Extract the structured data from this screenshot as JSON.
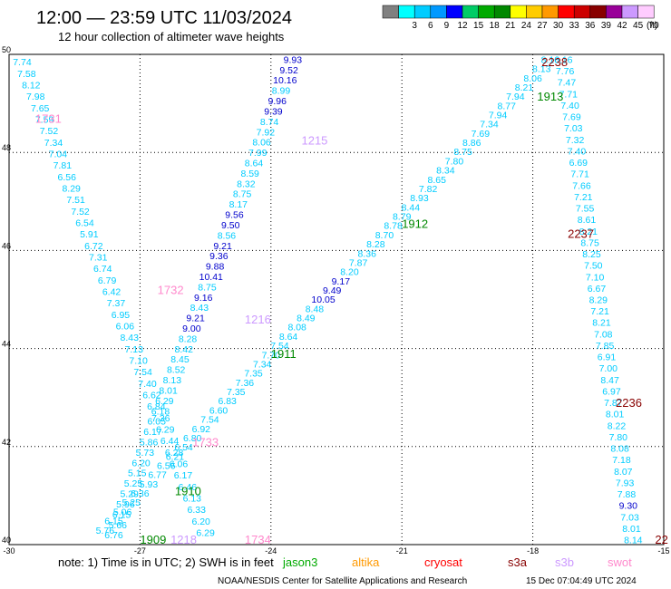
{
  "header": {
    "title": "12:00 — 23:59 UTC 11/03/2024",
    "subtitle": "12 hour collection of altimeter wave heights"
  },
  "scale": {
    "unit": "(ft)",
    "bins": [
      {
        "label": "",
        "color": "#808080"
      },
      {
        "label": "3",
        "color": "#00ffff"
      },
      {
        "label": "6",
        "color": "#00ccff"
      },
      {
        "label": "9",
        "color": "#0099ff"
      },
      {
        "label": "12",
        "color": "#0000ff"
      },
      {
        "label": "15",
        "color": "#00cc66"
      },
      {
        "label": "18",
        "color": "#00aa00"
      },
      {
        "label": "21",
        "color": "#008800"
      },
      {
        "label": "24",
        "color": "#ffff00"
      },
      {
        "label": "27",
        "color": "#ffcc00"
      },
      {
        "label": "30",
        "color": "#ff9900"
      },
      {
        "label": "33",
        "color": "#ff0000"
      },
      {
        "label": "36",
        "color": "#cc0000"
      },
      {
        "label": "39",
        "color": "#880000"
      },
      {
        "label": "42",
        "color": "#990099"
      },
      {
        "label": "45",
        "color": "#cc99ff"
      },
      {
        "label": "70",
        "color": "#ffccff"
      }
    ]
  },
  "axes": {
    "lon_ticks": [
      "-30",
      "-27",
      "-24",
      "-21",
      "-18",
      "-15"
    ],
    "lat_ticks": [
      "50",
      "48",
      "46",
      "44",
      "42",
      "40"
    ],
    "lon_range": [
      -30,
      -15
    ],
    "lat_range": [
      40,
      50
    ]
  },
  "satellites": [
    {
      "name": "jason3",
      "color": "#00aa00"
    },
    {
      "name": "altika",
      "color": "#ff9900"
    },
    {
      "name": "cryosat",
      "color": "#ff0000"
    },
    {
      "name": "s3a",
      "color": "#880000"
    },
    {
      "name": "s3b",
      "color": "#cc99ff"
    },
    {
      "name": "swot",
      "color": "#ff88cc"
    }
  ],
  "footer": {
    "note": "note: 1) Time is in UTC; 2) SWH is in feet",
    "credit": "NOAA/NESDIS Center for Satellite Applications and Research",
    "timestamp": "15 Dec 07:04:49 UTC 2024"
  },
  "tracks": [
    {
      "name": "track-swot-1731",
      "color": "#00ccff",
      "time": "1731",
      "time_color": "#ff88cc",
      "time_lon": -29.4,
      "time_lat": 48.7,
      "start": [
        -29.7,
        49.85
      ],
      "end": [
        -25.5,
        40.25
      ],
      "values": [
        "7.74",
        "7.58",
        "8.12",
        "7.98",
        "7.65",
        "7.59",
        "7.52",
        "7.34",
        "7.04",
        "7.81",
        "6.56",
        "8.29",
        "7.51",
        "7.52",
        "6.54",
        "5.91",
        "6.72",
        "7.31",
        "6.74",
        "6.79",
        "6.42",
        "7.37",
        "6.95",
        "6.06",
        "8.43",
        "7.13",
        "7.10",
        "7.54",
        "7.40",
        "6.62",
        "6.84",
        "7.36",
        "6.29",
        "6.44",
        "6.28",
        "6.06",
        "6.17",
        "6.46",
        "6.13",
        "6.33",
        "6.20",
        "6.29"
      ]
    },
    {
      "name": "track-s3b-1215",
      "color": "#00ccff",
      "time": "1215",
      "time_color": "#cc99ff",
      "time_lon": -23.3,
      "time_lat": 48.25,
      "start": [
        -23.5,
        49.9
      ],
      "end": [
        -27.6,
        40.2
      ],
      "values": [
        "9.93",
        "9.52",
        "10.16",
        "8.99",
        "9.96",
        "9.39",
        "8.74",
        "7.92",
        "8.06",
        "7.99",
        "8.64",
        "8.59",
        "8.32",
        "8.75",
        "8.17",
        "9.56",
        "9.50",
        "8.56",
        "9.21",
        "9.36",
        "9.88",
        "10.41",
        "8.75",
        "9.16",
        "8.43",
        "9.21",
        "9.00",
        "8.28",
        "8.42",
        "8.45",
        "8.52",
        "8.13",
        "8.01",
        "6.29",
        "6.18",
        "6.05",
        "6.17",
        "5.86",
        "5.73",
        "6.20",
        "5.15",
        "5.25",
        "5.29",
        "5.96",
        "6.15",
        "5.66",
        "6.76"
      ]
    },
    {
      "name": "track-jason3-1910",
      "color": "#00ccff",
      "time": "1912",
      "time_color": "#008800",
      "time_lon": -21.0,
      "time_lat": 46.55,
      "start": [
        -17.6,
        49.9
      ],
      "end": [
        -27.8,
        40.3
      ],
      "values": [
        "8.16",
        "8.13",
        "8.06",
        "8.21",
        "7.94",
        "8.77",
        "7.94",
        "7.34",
        "7.69",
        "8.86",
        "8.75",
        "7.80",
        "8.34",
        "8.65",
        "7.82",
        "8.93",
        "8.44",
        "8.79",
        "8.78",
        "8.70",
        "8.28",
        "8.36",
        "7.87",
        "8.20",
        "9.17",
        "9.49",
        "10.05",
        "8.48",
        "8.49",
        "8.08",
        "8.64",
        "7.54",
        "7.70",
        "7.34",
        "7.35",
        "7.36",
        "7.35",
        "6.83",
        "6.60",
        "7.54",
        "6.92",
        "6.80",
        "6.54",
        "6.21",
        "6.56",
        "6.77",
        "5.93",
        "6.36",
        "5.25",
        "5.06",
        "6.15",
        "5.76"
      ]
    },
    {
      "name": "track-s3a-2237",
      "color": "#00ccff",
      "time": "2237",
      "time_color": "#880000",
      "time_lon": -17.2,
      "time_lat": 46.35,
      "start": [
        -17.3,
        49.9
      ],
      "end": [
        -15.7,
        40.1
      ],
      "values": [
        "6.16",
        "7.76",
        "7.47",
        "7.71",
        "7.40",
        "7.69",
        "7.03",
        "7.32",
        "7.40",
        "6.69",
        "7.71",
        "7.66",
        "7.21",
        "7.55",
        "8.61",
        "8.21",
        "8.75",
        "8.25",
        "7.50",
        "7.10",
        "6.67",
        "8.29",
        "7.21",
        "8.21",
        "7.08",
        "7.85",
        "6.91",
        "7.00",
        "8.47",
        "6.97",
        "7.87",
        "8.01",
        "8.22",
        "7.80",
        "8.08",
        "7.18",
        "8.07",
        "7.93",
        "7.88",
        "9.30",
        "7.03",
        "8.01",
        "8.14"
      ]
    }
  ],
  "time_tags": [
    {
      "text": "2238",
      "color": "#880000",
      "lon": -17.8,
      "lat": 49.85
    },
    {
      "text": "1913",
      "color": "#008800",
      "lon": -17.9,
      "lat": 49.15
    },
    {
      "text": "1732",
      "color": "#ff88cc",
      "lon": -26.6,
      "lat": 45.2
    },
    {
      "text": "1216",
      "color": "#cc99ff",
      "lon": -24.6,
      "lat": 44.6
    },
    {
      "text": "1911",
      "color": "#008800",
      "lon": -24.0,
      "lat": 43.9
    },
    {
      "text": "2236",
      "color": "#880000",
      "lon": -16.1,
      "lat": 42.9
    },
    {
      "text": "1733",
      "color": "#ff88cc",
      "lon": -25.8,
      "lat": 42.1
    },
    {
      "text": "1910",
      "color": "#008800",
      "lon": -26.2,
      "lat": 41.1
    },
    {
      "text": "1909",
      "color": "#008800",
      "lon": -27.0,
      "lat": 40.0
    },
    {
      "text": "1218",
      "color": "#cc99ff",
      "lon": -26.3,
      "lat": 40.0
    },
    {
      "text": "1734",
      "color": "#ff88cc",
      "lon": -24.6,
      "lat": 40.0
    },
    {
      "text": "22",
      "color": "#880000",
      "lon": -15.2,
      "lat": 40.0
    }
  ]
}
